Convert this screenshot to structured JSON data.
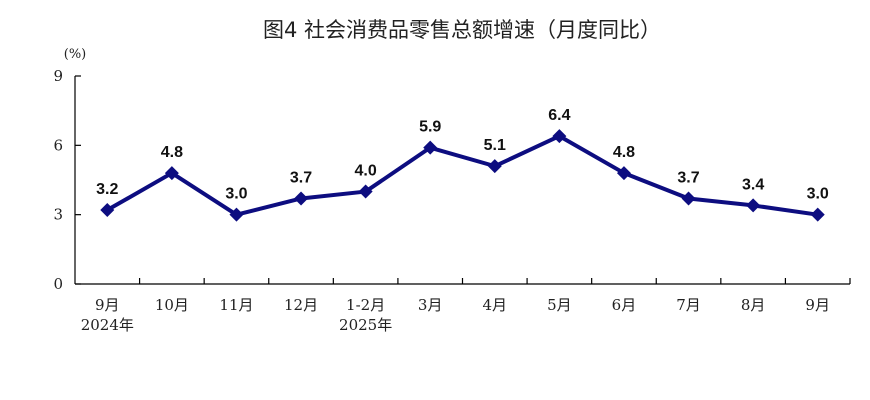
{
  "chart_data": {
    "type": "line",
    "title": "图4   社会消费品零售总额增速（月度同比）",
    "ylabel": "(%)",
    "xlabel": "",
    "ylim": [
      0,
      9
    ],
    "yticks": [
      0,
      3,
      6,
      9
    ],
    "grid": false,
    "legend": "none",
    "categories": [
      [
        "9月",
        "2024年"
      ],
      [
        "10月"
      ],
      [
        "11月"
      ],
      [
        "12月"
      ],
      [
        "1-2月",
        "2025年"
      ],
      [
        "3月"
      ],
      [
        "4月"
      ],
      [
        "5月"
      ],
      [
        "6月"
      ],
      [
        "7月"
      ],
      [
        "8月"
      ],
      [
        "9月"
      ]
    ],
    "series": [
      {
        "values": [
          3.2,
          4.8,
          3.0,
          3.7,
          4.0,
          5.9,
          5.1,
          6.4,
          4.8,
          3.7,
          3.4,
          3.0
        ],
        "labels": [
          "3.2",
          "4.8",
          "3.0",
          "3.7",
          "4.0",
          "5.9",
          "5.1",
          "6.4",
          "4.8",
          "3.7",
          "3.4",
          "3.0"
        ],
        "color": "#0d0d80",
        "marker": "diamond"
      }
    ]
  }
}
